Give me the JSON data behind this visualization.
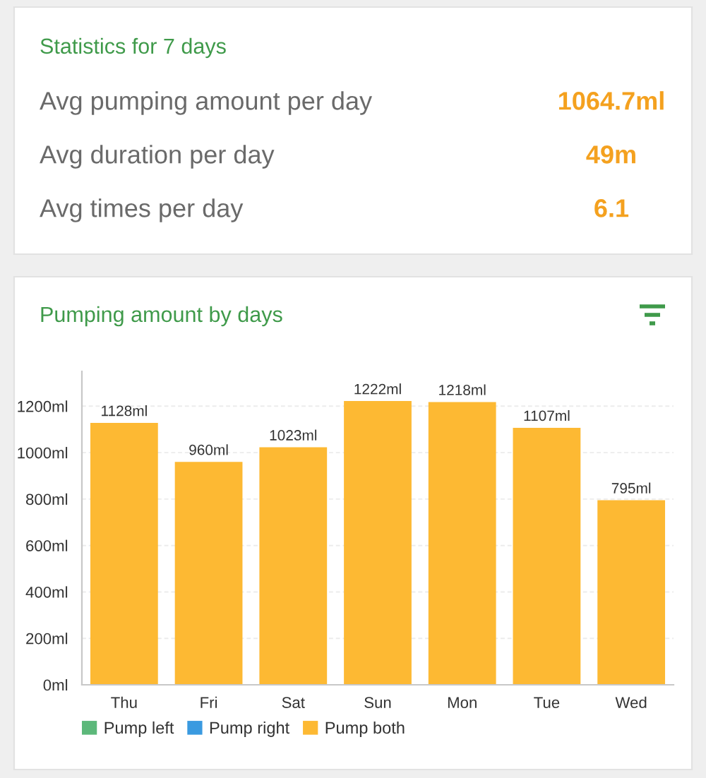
{
  "chart_data": [
    {
      "type": "other",
      "title": "Statistics for 7 days",
      "categories": [
        "Avg pumping amount per day",
        "Avg duration per day",
        "Avg times per day"
      ],
      "value_labels": [
        "1064.7ml",
        "49m",
        "6.1"
      ],
      "color": "#f4a11f"
    },
    {
      "type": "bar",
      "title": "Pumping amount by days",
      "categories": [
        "Thu",
        "Fri",
        "Sat",
        "Sun",
        "Mon",
        "Tue",
        "Wed"
      ],
      "stacked": true,
      "series": [
        {
          "name": "Pump left",
          "color": "#5cb87a",
          "values": [
            null,
            null,
            null,
            null,
            null,
            null,
            null
          ]
        },
        {
          "name": "Pump right",
          "color": "#3a9ae0",
          "values": [
            null,
            null,
            null,
            null,
            null,
            null,
            null
          ]
        },
        {
          "name": "Pump both",
          "color": "#fdb933",
          "values": [
            1128,
            960,
            1023,
            1222,
            1218,
            1107,
            795
          ],
          "value_labels": [
            "1128ml",
            "960ml",
            "1023ml",
            "1222ml",
            "1218ml",
            "1107ml",
            "795ml"
          ]
        }
      ],
      "ylim": [
        0,
        1350
      ],
      "yticks": [
        {
          "value": 0,
          "label": "0ml"
        },
        {
          "value": 200,
          "label": "200ml"
        },
        {
          "value": 400,
          "label": "400ml"
        },
        {
          "value": 600,
          "label": "600ml"
        },
        {
          "value": 800,
          "label": "800ml"
        },
        {
          "value": 1000,
          "label": "1000ml"
        },
        {
          "value": 1200,
          "label": "1200ml"
        }
      ],
      "grid": "y",
      "legend": "bottom"
    }
  ]
}
